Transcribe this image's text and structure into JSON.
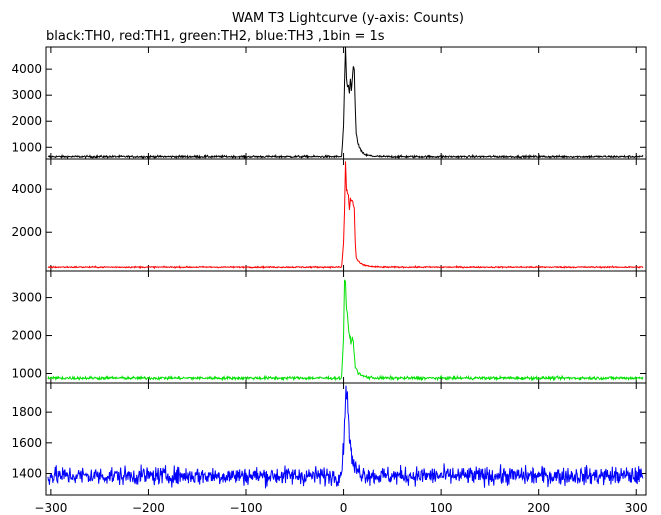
{
  "title": "WAM T3 Lightcurve (y-axis: Counts)",
  "subtitle": "black:TH0, red:TH1, green:TH2, blue:TH3 ,1bin = 1s",
  "chart_data": {
    "type": "line",
    "title": "WAM T3 Lightcurve (y-axis: Counts)",
    "subtitle": "black:TH0, red:TH1, green:TH2, blue:TH3 ,1bin = 1s",
    "xlabel": "",
    "ylabel": "",
    "xlim": [
      -305,
      310
    ],
    "x_ticks": [
      -300,
      -200,
      -100,
      0,
      100,
      200,
      300
    ],
    "x_tick_labels": [
      "−300",
      "−200",
      "−100",
      "0",
      "100",
      "200",
      "300"
    ],
    "bin_seconds": 1,
    "grid": false,
    "panels": [
      {
        "name": "TH0",
        "color": "#000000",
        "ylim": [
          550,
          4850
        ],
        "y_ticks": [
          1000,
          2000,
          3000,
          4000
        ],
        "y_tick_labels": [
          "1000",
          "2000",
          "3000",
          "4000"
        ],
        "baseline": 640,
        "noise": 28,
        "profile": [
          [
            -2,
            640
          ],
          [
            0,
            1800
          ],
          [
            1,
            3500
          ],
          [
            2,
            4750
          ],
          [
            3,
            3600
          ],
          [
            4,
            3300
          ],
          [
            5,
            3350
          ],
          [
            6,
            3100
          ],
          [
            7,
            3600
          ],
          [
            8,
            3200
          ],
          [
            9,
            3700
          ],
          [
            10,
            4100
          ],
          [
            11,
            3900
          ],
          [
            12,
            2500
          ],
          [
            13,
            1500
          ],
          [
            14,
            1300
          ],
          [
            16,
            1000
          ],
          [
            19,
            800
          ],
          [
            23,
            700
          ],
          [
            30,
            660
          ],
          [
            40,
            640
          ]
        ]
      },
      {
        "name": "TH1",
        "color": "#ff0000",
        "ylim": [
          200,
          5400
        ],
        "y_ticks": [
          2000,
          4000
        ],
        "y_tick_labels": [
          "2000",
          "4000"
        ],
        "baseline": 380,
        "noise": 22,
        "profile": [
          [
            -2,
            380
          ],
          [
            0,
            1500
          ],
          [
            1,
            3000
          ],
          [
            2,
            5300
          ],
          [
            3,
            4000
          ],
          [
            4,
            3800
          ],
          [
            5,
            3700
          ],
          [
            6,
            3000
          ],
          [
            7,
            3600
          ],
          [
            8,
            3400
          ],
          [
            9,
            3500
          ],
          [
            10,
            3300
          ],
          [
            11,
            3100
          ],
          [
            12,
            1500
          ],
          [
            13,
            800
          ],
          [
            16,
            600
          ],
          [
            20,
            480
          ],
          [
            30,
            400
          ],
          [
            40,
            380
          ]
        ]
      },
      {
        "name": "TH2",
        "color": "#00e000",
        "ylim": [
          750,
          3700
        ],
        "y_ticks": [
          1000,
          2000,
          3000
        ],
        "y_tick_labels": [
          "1000",
          "2000",
          "3000"
        ],
        "baseline": 880,
        "noise": 28,
        "profile": [
          [
            -2,
            880
          ],
          [
            0,
            2000
          ],
          [
            1,
            3500
          ],
          [
            2,
            3400
          ],
          [
            3,
            2700
          ],
          [
            4,
            2500
          ],
          [
            5,
            2200
          ],
          [
            6,
            2000
          ],
          [
            7,
            1900
          ],
          [
            8,
            1800
          ],
          [
            9,
            2000
          ],
          [
            10,
            1800
          ],
          [
            11,
            1500
          ],
          [
            12,
            1200
          ],
          [
            14,
            1050
          ],
          [
            18,
            950
          ],
          [
            25,
            900
          ],
          [
            35,
            880
          ]
        ]
      },
      {
        "name": "TH3",
        "color": "#0000ff",
        "ylim": [
          1260,
          1990
        ],
        "y_ticks": [
          1400,
          1600,
          1800
        ],
        "y_tick_labels": [
          "1400",
          "1600",
          "1800"
        ],
        "baseline": 1385,
        "noise": 42,
        "profile": [
          [
            -3,
            1385
          ],
          [
            0,
            1550
          ],
          [
            1,
            1750
          ],
          [
            2,
            1930
          ],
          [
            3,
            1900
          ],
          [
            4,
            1880
          ],
          [
            5,
            1800
          ],
          [
            6,
            1650
          ],
          [
            7,
            1600
          ],
          [
            8,
            1520
          ],
          [
            10,
            1450
          ],
          [
            14,
            1420
          ],
          [
            20,
            1400
          ],
          [
            30,
            1385
          ]
        ]
      }
    ]
  }
}
